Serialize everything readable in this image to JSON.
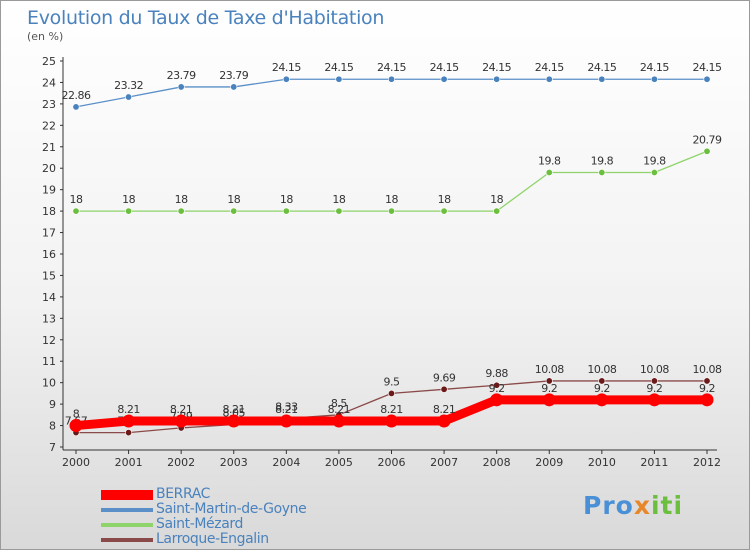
{
  "title": "Evolution du Taux de Taxe d'Habitation",
  "subtitle": "(en %)",
  "logo": {
    "part1": "Pro",
    "part2": "x",
    "part3": "iti"
  },
  "chart_data": {
    "type": "line",
    "x": [
      2000,
      2001,
      2002,
      2003,
      2004,
      2005,
      2006,
      2007,
      2008,
      2009,
      2010,
      2011,
      2012
    ],
    "ylim": [
      7,
      25
    ],
    "yticks": [
      7,
      8,
      9,
      10,
      11,
      12,
      13,
      14,
      15,
      16,
      17,
      18,
      19,
      20,
      21,
      22,
      23,
      24,
      25
    ],
    "grid": false,
    "legend_position": "bottom-left",
    "series": [
      {
        "name": "Saint-Martin-de-Goyne",
        "color": "#5a8fc7",
        "marker": "#4a82bd",
        "values": [
          22.86,
          23.32,
          23.79,
          23.79,
          24.15,
          24.15,
          24.15,
          24.15,
          24.15,
          24.15,
          24.15,
          24.15,
          24.15
        ],
        "labels": [
          "22.86",
          "23.32",
          "23.79",
          "23.79",
          "24.15",
          "24.15",
          "24.15",
          "24.15",
          "24.15",
          "24.15",
          "24.15",
          "24.15",
          "24.15"
        ]
      },
      {
        "name": "Saint-Mézard",
        "color": "#8ed46a",
        "marker": "#6cbf3e",
        "values": [
          18,
          18,
          18,
          18,
          18,
          18,
          18,
          18,
          18,
          19.8,
          19.8,
          19.8,
          20.79
        ],
        "labels": [
          "18",
          "18",
          "18",
          "18",
          "18",
          "18",
          "18",
          "18",
          "18",
          "19.8",
          "19.8",
          "19.8",
          "20.79"
        ]
      },
      {
        "name": "Larroque-Engalin",
        "color": "#8b4a4a",
        "marker": "#6b1a1a",
        "values": [
          7.67,
          7.67,
          7.89,
          8.05,
          8.33,
          8.5,
          9.5,
          9.69,
          9.88,
          10.08,
          10.08,
          10.08,
          10.08
        ],
        "labels": [
          "7.67",
          "7.67",
          "7.89",
          "8.05",
          "8.33",
          "8.5",
          "9.5",
          "9.69",
          "9.88",
          "10.08",
          "10.08",
          "10.08",
          "10.08"
        ]
      },
      {
        "name": "BERRAC",
        "color": "#ff0000",
        "marker": "#ff0000",
        "thick": true,
        "values": [
          8,
          8.21,
          8.21,
          8.21,
          8.21,
          8.21,
          8.21,
          8.21,
          9.2,
          9.2,
          9.2,
          9.2,
          9.2
        ],
        "labels": [
          "8",
          "8.21",
          "8.21",
          "8.21",
          "8.21",
          "8.21",
          "8.21",
          "8.21",
          "9.2",
          "9.2",
          "9.2",
          "9.2",
          "9.2"
        ]
      }
    ],
    "legend": [
      {
        "name": "BERRAC",
        "color": "#ff0000",
        "thick": true
      },
      {
        "name": "Saint-Martin-de-Goyne",
        "color": "#5a8fc7"
      },
      {
        "name": "Saint-Mézard",
        "color": "#8ed46a"
      },
      {
        "name": "Larroque-Engalin",
        "color": "#8b4a4a"
      }
    ]
  }
}
